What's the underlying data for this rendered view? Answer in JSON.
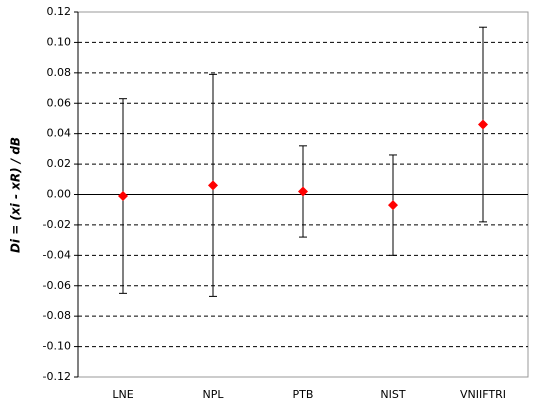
{
  "chart_data": {
    "type": "errorbar",
    "y_label": "Di = (xi - xR) / dB",
    "categories": [
      "LNE",
      "NPL",
      "PTB",
      "NIST",
      "VNIIFTRI"
    ],
    "values": [
      -0.001,
      0.006,
      0.002,
      -0.007,
      0.046
    ],
    "errors": [
      0.064,
      0.073,
      0.03,
      0.033,
      0.064
    ],
    "color": "#ff0000",
    "ylim": [
      -0.12,
      0.12
    ],
    "yticks": [
      -0.12,
      {
        "value": -0.1,
        "label": "-0.10"
      },
      -0.08,
      -0.06,
      -0.04,
      -0.02,
      {
        "value": 0,
        "label": "0.00"
      },
      0.02,
      0.04,
      0.06,
      0.08,
      {
        "value": 0.1,
        "label": "0.10"
      },
      0.12
    ],
    "grid": true
  }
}
